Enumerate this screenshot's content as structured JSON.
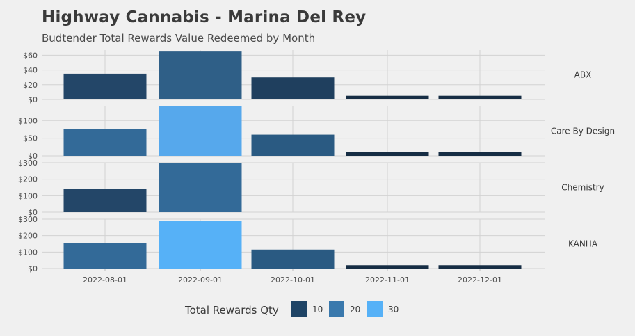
{
  "chart_data": {
    "type": "bar",
    "title": "Highway Cannabis - Marina Del Rey",
    "subtitle": "Budtender Total Rewards Value Redeemed by Month",
    "categories": [
      "2022-08-01",
      "2022-09-01",
      "2022-10-01",
      "2022-11-01",
      "2022-12-01"
    ],
    "grid": true,
    "legend": {
      "title": "Total Rewards Qty",
      "placement": "bottom",
      "entries": [
        {
          "label": "10",
          "color": "#1f4466"
        },
        {
          "label": "20",
          "color": "#3a79ad"
        },
        {
          "label": "30",
          "color": "#56b1f7"
        }
      ]
    },
    "facets": [
      {
        "name": "ABX",
        "ylim": [
          0,
          67
        ],
        "yticks": [
          0,
          20,
          40,
          60
        ],
        "ytick_labels": [
          "$0",
          "$20",
          "$40",
          "$60"
        ],
        "values": [
          35,
          65,
          30,
          5,
          5
        ],
        "colors": [
          "#234668",
          "#2f5f87",
          "#1f3f5e",
          "#162d44",
          "#162d44"
        ]
      },
      {
        "name": "Care By Design",
        "ylim": [
          0,
          140
        ],
        "yticks": [
          0,
          50,
          100
        ],
        "ytick_labels": [
          "$0",
          "$50",
          "$100"
        ],
        "values": [
          75,
          140,
          60,
          10,
          10
        ],
        "colors": [
          "#336a98",
          "#56a8ec",
          "#2a5a82",
          "#162d44",
          "#162d44"
        ]
      },
      {
        "name": "Chemistry",
        "ylim": [
          0,
          300
        ],
        "yticks": [
          0,
          100,
          200,
          300
        ],
        "ytick_labels": [
          "$0",
          "$100",
          "$200",
          "$300"
        ],
        "values": [
          140,
          300,
          null,
          null,
          null
        ],
        "colors": [
          "#234668",
          "#336a98",
          null,
          null,
          null
        ]
      },
      {
        "name": "KANHA",
        "ylim": [
          0,
          300
        ],
        "yticks": [
          0,
          100,
          200,
          300
        ],
        "ytick_labels": [
          "$0",
          "$100",
          "$200",
          "$300"
        ],
        "values": [
          155,
          290,
          115,
          20,
          20
        ],
        "colors": [
          "#336a98",
          "#56b1f7",
          "#2a5a82",
          "#162d44",
          "#162d44"
        ]
      }
    ]
  }
}
